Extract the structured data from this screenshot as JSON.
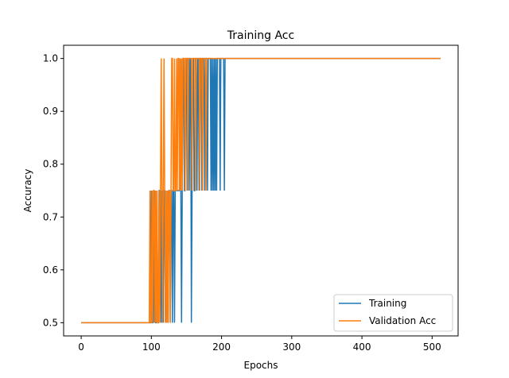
{
  "chart_data": {
    "type": "line",
    "title": "Training Acc",
    "xlabel": "Epochs",
    "ylabel": "Accuracy",
    "xlim": [
      -25,
      537
    ],
    "ylim": [
      0.475,
      1.025
    ],
    "xticks": [
      0,
      100,
      200,
      300,
      400,
      500
    ],
    "yticks": [
      0.5,
      0.6,
      0.7,
      0.8,
      0.9,
      1.0
    ],
    "ytick_labels": [
      "0.5",
      "0.6",
      "0.7",
      "0.8",
      "0.9",
      "1.0"
    ],
    "legend_position": "lower-right",
    "grid": false,
    "series": [
      {
        "name": "Training",
        "color": "#1f77b4",
        "x": [
          0,
          98,
          99,
          100,
          101,
          102,
          103,
          104,
          105,
          106,
          107,
          108,
          109,
          110,
          111,
          112,
          113,
          114,
          115,
          116,
          117,
          118,
          119,
          120,
          121,
          122,
          123,
          124,
          125,
          126,
          127,
          128,
          129,
          130,
          131,
          132,
          133,
          134,
          135,
          136,
          137,
          138,
          139,
          140,
          141,
          142,
          143,
          144,
          145,
          146,
          147,
          148,
          149,
          150,
          151,
          152,
          153,
          154,
          155,
          156,
          157,
          158,
          159,
          160,
          161,
          162,
          163,
          164,
          165,
          166,
          167,
          168,
          169,
          170,
          171,
          172,
          173,
          174,
          175,
          176,
          177,
          178,
          179,
          180,
          181,
          182,
          183,
          184,
          185,
          186,
          187,
          188,
          189,
          190,
          191,
          192,
          193,
          194,
          195,
          196,
          197,
          198,
          199,
          200,
          201,
          202,
          203,
          204,
          205,
          206,
          512
        ],
        "y": [
          0.5,
          0.5,
          0.5,
          0.75,
          0.5,
          0.5,
          0.75,
          0.5,
          0.75,
          0.5,
          0.5,
          0.75,
          0.5,
          0.5,
          0.75,
          0.75,
          0.5,
          0.75,
          0.5,
          0.75,
          0.5,
          0.75,
          0.75,
          0.5,
          0.75,
          0.5,
          0.75,
          0.5,
          0.75,
          0.75,
          0.5,
          0.75,
          0.75,
          0.5,
          0.75,
          0.75,
          0.5,
          0.75,
          0.75,
          0.75,
          0.75,
          0.75,
          0.75,
          0.75,
          1.0,
          0.75,
          0.5,
          0.75,
          1.0,
          1.0,
          0.75,
          0.75,
          1.0,
          1.0,
          0.75,
          1.0,
          1.0,
          0.75,
          1.0,
          1.0,
          0.5,
          0.75,
          1.0,
          1.0,
          0.75,
          0.75,
          1.0,
          1.0,
          0.75,
          1.0,
          1.0,
          0.75,
          1.0,
          1.0,
          1.0,
          0.75,
          1.0,
          1.0,
          1.0,
          0.75,
          1.0,
          1.0,
          1.0,
          0.75,
          1.0,
          1.0,
          1.0,
          1.0,
          0.75,
          1.0,
          0.75,
          1.0,
          0.75,
          1.0,
          0.75,
          1.0,
          0.75,
          1.0,
          1.0,
          1.0,
          1.0,
          0.75,
          1.0,
          1.0,
          1.0,
          1.0,
          1.0,
          0.75,
          1.0,
          1.0,
          1.0
        ]
      },
      {
        "name": "Validation Acc",
        "color": "#ff7f0e",
        "x": [
          0,
          97,
          98,
          99,
          100,
          101,
          102,
          103,
          104,
          105,
          106,
          107,
          108,
          109,
          110,
          111,
          112,
          113,
          114,
          115,
          116,
          117,
          118,
          119,
          120,
          121,
          122,
          123,
          124,
          125,
          126,
          127,
          128,
          129,
          130,
          131,
          132,
          133,
          134,
          135,
          136,
          137,
          138,
          139,
          140,
          141,
          142,
          143,
          144,
          145,
          146,
          147,
          148,
          149,
          150,
          151,
          152,
          153,
          154,
          155,
          156,
          157,
          158,
          159,
          160,
          161,
          162,
          163,
          164,
          165,
          166,
          167,
          168,
          169,
          170,
          171,
          172,
          173,
          174,
          175,
          176,
          177,
          178,
          179,
          180,
          181,
          182,
          183,
          184,
          185,
          186,
          187,
          188,
          189,
          190,
          512
        ],
        "y": [
          0.5,
          0.5,
          0.75,
          0.5,
          0.5,
          0.75,
          0.5,
          0.75,
          0.75,
          0.5,
          0.75,
          0.5,
          0.75,
          0.5,
          0.5,
          0.75,
          0.5,
          0.75,
          1.0,
          0.75,
          0.5,
          0.75,
          1.0,
          0.75,
          0.5,
          0.75,
          0.5,
          0.75,
          0.5,
          0.75,
          0.75,
          0.5,
          0.75,
          1.0,
          1.0,
          0.75,
          0.75,
          1.0,
          0.75,
          0.75,
          1.0,
          0.75,
          1.0,
          1.0,
          0.75,
          1.0,
          0.75,
          1.0,
          0.75,
          1.0,
          1.0,
          1.0,
          0.75,
          1.0,
          1.0,
          1.0,
          0.75,
          1.0,
          1.0,
          1.0,
          1.0,
          1.0,
          0.75,
          1.0,
          1.0,
          1.0,
          1.0,
          0.75,
          1.0,
          1.0,
          1.0,
          1.0,
          1.0,
          0.75,
          1.0,
          1.0,
          1.0,
          0.75,
          1.0,
          1.0,
          1.0,
          1.0,
          0.75,
          1.0,
          1.0,
          1.0,
          1.0,
          1.0,
          1.0,
          1.0,
          1.0,
          1.0,
          1.0,
          1.0,
          1.0,
          1.0
        ]
      }
    ]
  }
}
